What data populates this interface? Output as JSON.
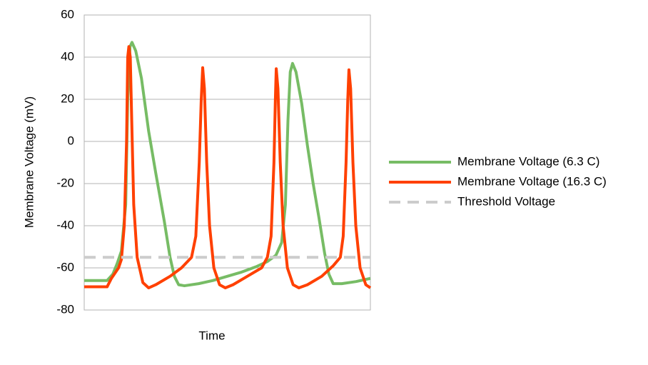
{
  "chart_data": {
    "type": "line",
    "y_label": "Membrane Voltage (mV)",
    "x_label": "Time",
    "xlim": [
      0,
      100
    ],
    "ylim": [
      -80,
      60
    ],
    "yticks": [
      -80,
      -60,
      -40,
      -20,
      0,
      20,
      40,
      60
    ],
    "grid": true,
    "legend": "right",
    "series": [
      {
        "name": "Membrane Voltage (6.3 C)",
        "color": "#77bc65",
        "style": "solid",
        "x": [
          0,
          8,
          10,
          11.5,
          13,
          14.5,
          15.2,
          16,
          16.7,
          18,
          20,
          22.5,
          25,
          28,
          30,
          31.5,
          33,
          35,
          40,
          45,
          50,
          55,
          60,
          64,
          67,
          69,
          70.3,
          71.2,
          72,
          72.8,
          74,
          76,
          78,
          80,
          82,
          84,
          85.5,
          87,
          90,
          95,
          100
        ],
        "values": [
          -66,
          -66,
          -63,
          -58,
          -52,
          -30,
          20,
          45,
          47,
          43,
          30,
          5,
          -15,
          -38,
          -55,
          -64,
          -68,
          -68.5,
          -67.5,
          -66,
          -64,
          -62,
          -59.5,
          -57,
          -54,
          -48,
          -30,
          10,
          33,
          37,
          33,
          18,
          -2,
          -20,
          -36,
          -53,
          -63,
          -67.5,
          -67.5,
          -66.5,
          -65
        ]
      },
      {
        "name": "Membrane Voltage (16.3 C)",
        "color": "#ff4000",
        "style": "solid",
        "x": [
          0,
          8,
          9.5,
          12,
          13,
          14,
          14.8,
          15.2,
          15.6,
          16.1,
          16.6,
          17.3,
          18.5,
          20.5,
          22.5,
          25,
          30,
          34,
          37.5,
          39,
          40.2,
          40.9,
          41.4,
          42,
          42.8,
          43.8,
          45.3,
          47.3,
          49.3,
          52,
          57,
          62,
          64,
          65.3,
          66.3,
          66.8,
          67.1,
          67.7,
          68.5,
          69.5,
          71,
          73,
          75,
          78,
          83,
          87,
          89.5,
          90.5,
          91.5,
          92.1,
          92.5,
          93.1,
          93.9,
          94.9,
          96.4,
          98.4,
          100
        ],
        "values": [
          -69,
          -69,
          -65,
          -60,
          -56,
          -40,
          0,
          40,
          45,
          40,
          10,
          -30,
          -55,
          -67,
          -69.5,
          -68,
          -64,
          -60,
          -55,
          -45,
          -10,
          20,
          35,
          25,
          -10,
          -40,
          -60,
          -68,
          -69.5,
          -68,
          -64,
          -60,
          -55,
          -45,
          -10,
          20,
          34.5,
          25,
          -10,
          -40,
          -60,
          -68,
          -69.5,
          -68,
          -64,
          -59,
          -55,
          -45,
          -10,
          20,
          34,
          25,
          -10,
          -40,
          -60,
          -68,
          -69.5
        ]
      },
      {
        "name": "Threshold Voltage",
        "color": "#cccccc",
        "style": "dashed",
        "x": [
          0,
          100
        ],
        "values": [
          -55,
          -55
        ]
      }
    ]
  }
}
